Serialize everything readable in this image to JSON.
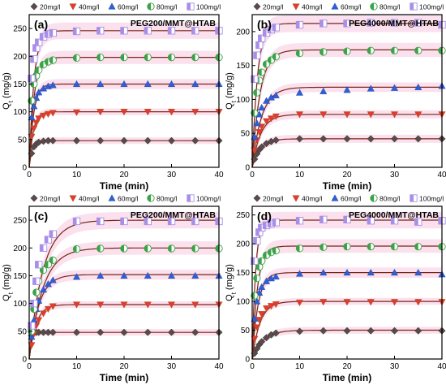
{
  "colors": {
    "20mg/l": "#5a4a4a",
    "40mg/l": "#e03b2e",
    "60mg/l": "#2f5fd6",
    "80mg/l": "#3aa346",
    "100mg/l": "#a98ee8",
    "fit": "#7a2418",
    "band": "#f4bcd6"
  },
  "chart_data": [
    {
      "type": "scatter",
      "panel_label": "(a)",
      "title": "PEG200/MMT@HTAB",
      "xlabel": "Time (min)",
      "ylabel": "Q",
      "ylabel_sub": "t",
      "ylabel_unit": " (mg/g)",
      "xlim": [
        0,
        40
      ],
      "ylim": [
        0,
        275
      ],
      "xticks": [
        0,
        10,
        20,
        30,
        40
      ],
      "yticks": [
        0,
        50,
        100,
        150,
        200,
        250
      ],
      "legend": [
        "20mg/l",
        "40mg/l",
        "60mg/l",
        "80mg/l",
        "100mg/l"
      ],
      "x": [
        0.5,
        1,
        1.5,
        2,
        3,
        4,
        5,
        10,
        15,
        20,
        25,
        30,
        35,
        40
      ],
      "series": [
        {
          "name": "20mg/l",
          "marker": "diamond",
          "values": [
            25,
            37,
            42,
            45,
            47,
            48,
            48,
            48,
            48,
            48,
            48,
            48,
            48,
            48
          ],
          "fit_qe": 48,
          "fit_k": 1.8
        },
        {
          "name": "40mg/l",
          "marker": "triangle-down",
          "values": [
            55,
            70,
            80,
            88,
            93,
            96,
            98,
            99,
            100,
            100,
            100,
            100,
            100,
            100
          ],
          "fit_qe": 100,
          "fit_k": 1.2
        },
        {
          "name": "60mg/l",
          "marker": "triangle-up",
          "values": [
            90,
            110,
            125,
            135,
            142,
            146,
            148,
            150,
            150,
            150,
            150,
            150,
            150,
            150
          ],
          "fit_qe": 150,
          "fit_k": 1.1
        },
        {
          "name": "80mg/l",
          "marker": "circle-half",
          "values": [
            120,
            150,
            165,
            175,
            185,
            190,
            193,
            197,
            198,
            198,
            198,
            198,
            198,
            198
          ],
          "fit_qe": 198,
          "fit_k": 1.0
        },
        {
          "name": "100mg/l",
          "marker": "square-half",
          "values": [
            160,
            195,
            215,
            225,
            235,
            240,
            242,
            245,
            246,
            246,
            246,
            246,
            246,
            246
          ],
          "fit_qe": 246,
          "fit_k": 1.0
        }
      ]
    },
    {
      "type": "scatter",
      "panel_label": "(b)",
      "title": "PEG4000/MMT@HTAB",
      "xlabel": "Time (min)",
      "ylabel": "Q",
      "ylabel_sub": "t",
      "ylabel_unit": " (mg/g)",
      "xlim": [
        0,
        40
      ],
      "ylim": [
        0,
        225
      ],
      "xticks": [
        0,
        10,
        20,
        30,
        40
      ],
      "yticks": [
        0,
        50,
        100,
        150,
        200
      ],
      "legend": [
        "20mg/l",
        "40mg/l",
        "60mg/l",
        "80mg/l",
        "100mg/l"
      ],
      "x": [
        0.5,
        1,
        1.5,
        2,
        3,
        4,
        5,
        10,
        15,
        20,
        25,
        30,
        35,
        40
      ],
      "series": [
        {
          "name": "20mg/l",
          "marker": "diamond",
          "values": [
            12,
            20,
            26,
            30,
            35,
            38,
            40,
            42,
            42,
            42,
            42,
            42,
            42,
            42
          ],
          "fit_qe": 42,
          "fit_k": 0.6
        },
        {
          "name": "40mg/l",
          "marker": "triangle-down",
          "values": [
            25,
            40,
            52,
            60,
            68,
            72,
            75,
            78,
            78,
            78,
            78,
            78,
            78,
            78
          ],
          "fit_qe": 78,
          "fit_k": 0.55
        },
        {
          "name": "60mg/l",
          "marker": "triangle-up",
          "values": [
            45,
            65,
            78,
            88,
            98,
            103,
            106,
            110,
            112,
            114,
            116,
            117,
            118,
            120
          ],
          "fit_qe": 118,
          "fit_k": 0.5
        },
        {
          "name": "80mg/l",
          "marker": "circle-half",
          "values": [
            80,
            110,
            128,
            140,
            152,
            158,
            163,
            168,
            170,
            171,
            172,
            172,
            172,
            172
          ],
          "fit_qe": 173,
          "fit_k": 0.6
        },
        {
          "name": "100mg/l",
          "marker": "square-half",
          "values": [
            130,
            165,
            180,
            190,
            198,
            203,
            206,
            210,
            212,
            212,
            213,
            213,
            213,
            210
          ],
          "fit_qe": 212,
          "fit_k": 0.9
        }
      ]
    },
    {
      "type": "scatter",
      "panel_label": "(c)",
      "title": "PEG200/MMT@HTAB",
      "xlabel": "Time (min)",
      "ylabel": "Q",
      "ylabel_sub": "t",
      "ylabel_unit": " (mg/g)",
      "xlim": [
        0,
        40
      ],
      "ylim": [
        0,
        275
      ],
      "xticks": [
        0,
        10,
        20,
        30,
        40
      ],
      "yticks": [
        0,
        50,
        100,
        150,
        200,
        250
      ],
      "legend": [
        "20mg/l",
        "40mg/l",
        "60mg/l",
        "80mg/l",
        "100mg/l"
      ],
      "x": [
        0.5,
        1,
        1.5,
        2,
        3,
        4,
        5,
        10,
        15,
        20,
        25,
        30,
        35,
        40
      ],
      "series": [
        {
          "name": "20mg/l",
          "marker": "diamond",
          "values": [
            42,
            47,
            48,
            48,
            48,
            48,
            48,
            48,
            48,
            48,
            48,
            48,
            48,
            48
          ],
          "fit_qe": 48,
          "fit_k": 4.0
        },
        {
          "name": "40mg/l",
          "marker": "triangle-down",
          "values": [
            25,
            45,
            60,
            70,
            82,
            90,
            95,
            98,
            98,
            98,
            98,
            98,
            98,
            98
          ],
          "fit_qe": 98,
          "fit_k": 0.7
        },
        {
          "name": "60mg/l",
          "marker": "triangle-up",
          "values": [
            40,
            70,
            90,
            105,
            125,
            135,
            142,
            148,
            150,
            150,
            150,
            150,
            150,
            150
          ],
          "fit_qe": 152,
          "fit_k": 0.5
        },
        {
          "name": "80mg/l",
          "marker": "circle-half",
          "values": [
            50,
            90,
            120,
            140,
            160,
            170,
            178,
            198,
            199,
            199,
            199,
            199,
            199,
            199
          ],
          "fit_qe": 200,
          "fit_k": 0.35
        },
        {
          "name": "100mg/l",
          "marker": "square-half",
          "values": [
            60,
            100,
            140,
            170,
            200,
            215,
            225,
            248,
            248,
            248,
            248,
            248,
            248,
            248
          ],
          "fit_qe": 250,
          "fit_k": 0.35
        }
      ]
    },
    {
      "type": "scatter",
      "panel_label": "(d)",
      "title": "PEG4000/MMT@HTAB",
      "xlabel": "Time (min)",
      "ylabel": "Q",
      "ylabel_sub": "t",
      "ylabel_unit": " (mg/g)",
      "xlim": [
        0,
        40
      ],
      "ylim": [
        0,
        265
      ],
      "xticks": [
        0,
        10,
        20,
        30,
        40
      ],
      "yticks": [
        0,
        50,
        100,
        150,
        200,
        250
      ],
      "legend": [
        "20mg/l",
        "40mg/l",
        "60mg/l",
        "80mg/l",
        "100mg/l"
      ],
      "x": [
        0.5,
        1,
        1.5,
        2,
        3,
        4,
        5,
        10,
        15,
        20,
        25,
        30,
        35,
        40
      ],
      "series": [
        {
          "name": "20mg/l",
          "marker": "diamond",
          "values": [
            10,
            18,
            25,
            30,
            37,
            42,
            45,
            48,
            49,
            49,
            49,
            49,
            49,
            49
          ],
          "fit_qe": 50,
          "fit_k": 0.45
        },
        {
          "name": "40mg/l",
          "marker": "triangle-down",
          "values": [
            35,
            55,
            68,
            78,
            88,
            92,
            95,
            98,
            99,
            99,
            99,
            99,
            99,
            99
          ],
          "fit_qe": 100,
          "fit_k": 0.6
        },
        {
          "name": "60mg/l",
          "marker": "triangle-up",
          "values": [
            70,
            100,
            115,
            125,
            135,
            140,
            143,
            148,
            150,
            150,
            150,
            150,
            150,
            147
          ],
          "fit_qe": 150,
          "fit_k": 0.8
        },
        {
          "name": "80mg/l",
          "marker": "circle-half",
          "values": [
            110,
            140,
            160,
            170,
            180,
            185,
            188,
            192,
            194,
            195,
            195,
            195,
            195,
            195
          ],
          "fit_qe": 196,
          "fit_k": 0.9
        },
        {
          "name": "100mg/l",
          "marker": "square-half",
          "values": [
            170,
            205,
            220,
            228,
            232,
            235,
            237,
            240,
            242,
            242,
            240,
            240,
            238,
            240
          ],
          "fit_qe": 241,
          "fit_k": 1.4
        }
      ]
    }
  ]
}
